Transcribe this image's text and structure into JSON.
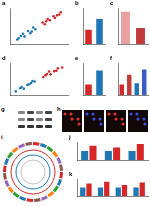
{
  "chart_data": [
    {
      "title": "a",
      "type": "scatter",
      "xlim": [
        -4,
        4
      ],
      "ylim": [
        -4,
        4
      ],
      "xticks": [
        -4,
        0,
        4
      ],
      "yticks": [
        -4,
        0,
        4
      ],
      "tick_labels": false,
      "grid": false,
      "series": [
        {
          "color": "#d62728",
          "x": [
            0.5,
            1,
            1.5,
            2,
            2.5,
            3,
            1.2,
            2.2,
            0.8,
            2.8
          ],
          "values": [
            0.8,
            1.1,
            1.3,
            2.2,
            2.4,
            3.1,
            1.6,
            1.8,
            0.4,
            2.6
          ]
        },
        {
          "color": "#1f77b4",
          "x": [
            -0.5,
            -1,
            -1.5,
            -2,
            -2.5,
            -3,
            -1.2,
            -2.2,
            -0.8,
            -2.8
          ],
          "values": [
            -0.7,
            -1.2,
            -1.1,
            -2.3,
            -2.2,
            -3.0,
            -1.6,
            -1.7,
            -0.3,
            -2.7
          ]
        }
      ]
    },
    {
      "title": "b",
      "type": "bar",
      "categories": [
        null,
        null
      ],
      "values": [
        1.2,
        2.1
      ],
      "colors": [
        "#d62728",
        "#1f77b4"
      ],
      "ylim": [
        0,
        3
      ],
      "yticks": [
        0,
        1,
        2,
        3
      ],
      "tick_labels": false,
      "grid": false
    },
    {
      "title": "c",
      "type": "bar",
      "categories": [
        null,
        null
      ],
      "values": [
        1.8,
        0.9
      ],
      "colors": [
        "#e8a0a0",
        "#c23b3b"
      ],
      "ylim": [
        0,
        2
      ],
      "yticks": [
        0,
        1,
        2
      ],
      "tick_labels": false,
      "grid": false
    },
    {
      "title": "d",
      "type": "scatter",
      "xlim": [
        -4,
        4
      ],
      "ylim": [
        -4,
        4
      ],
      "xticks": [
        -4,
        0,
        4
      ],
      "yticks": [
        -4,
        0,
        4
      ],
      "tick_labels": false,
      "grid": false,
      "series": [
        {
          "color": "#d62728",
          "x": [
            0.6,
            1.1,
            1.6,
            2.1,
            2.6,
            3.2,
            1.4,
            2.4,
            0.9
          ],
          "values": [
            0.5,
            1.3,
            1.2,
            2.0,
            2.7,
            2.9,
            1.9,
            2.1,
            1.0
          ]
        },
        {
          "color": "#1f77b4",
          "x": [
            -0.6,
            -1.1,
            -1.6,
            -2.1,
            -2.6,
            -3.2,
            -1.4,
            -2.4,
            -0.9
          ],
          "values": [
            -0.6,
            -1.0,
            -1.5,
            -2.4,
            -2.3,
            -3.1,
            -1.3,
            -2.0,
            -0.5
          ]
        }
      ]
    },
    {
      "title": "e",
      "type": "bar",
      "categories": [
        null,
        null
      ],
      "values": [
        1.0,
        2.3
      ],
      "colors": [
        "#d62728",
        "#1f77b4"
      ],
      "ylim": [
        0,
        3
      ],
      "yticks": [
        0,
        1,
        2,
        3
      ],
      "tick_labels": false,
      "grid": false
    },
    {
      "title": "f",
      "type": "bar",
      "categories": [
        null,
        null,
        null,
        null
      ],
      "values": [
        1.0,
        1.9,
        1.1,
        2.4
      ],
      "colors": [
        "#d62728",
        "#c23b3b",
        "#1f77b4",
        "#3b5bc2"
      ],
      "ylim": [
        0,
        3
      ],
      "yticks": [
        0,
        1,
        2,
        3
      ],
      "tick_labels": false,
      "grid": false
    },
    {
      "title": "j",
      "type": "bar",
      "categories": [
        null,
        null,
        null
      ],
      "ylim": [
        0,
        2
      ],
      "yticks": [
        0,
        1,
        2
      ],
      "tick_labels": false,
      "grid": false,
      "series": [
        {
          "color": "#1f77b4",
          "values": [
            1.0,
            1.0,
            1.0
          ]
        },
        {
          "color": "#d62728",
          "values": [
            1.6,
            1.4,
            1.8
          ]
        }
      ]
    },
    {
      "title": "k",
      "type": "bar",
      "categories": [
        null,
        null,
        null,
        null
      ],
      "ylim": [
        0,
        2
      ],
      "yticks": [
        0,
        1,
        2
      ],
      "tick_labels": false,
      "grid": false,
      "series": [
        {
          "color": "#1f77b4",
          "values": [
            1.0,
            1.0,
            1.0,
            1.0
          ]
        },
        {
          "color": "#d62728",
          "values": [
            1.5,
            1.7,
            1.3,
            1.6
          ]
        }
      ]
    }
  ],
  "figures": {
    "g": {
      "title": "g"
    },
    "h": {
      "title": "h"
    },
    "i": {
      "title": "i"
    }
  }
}
